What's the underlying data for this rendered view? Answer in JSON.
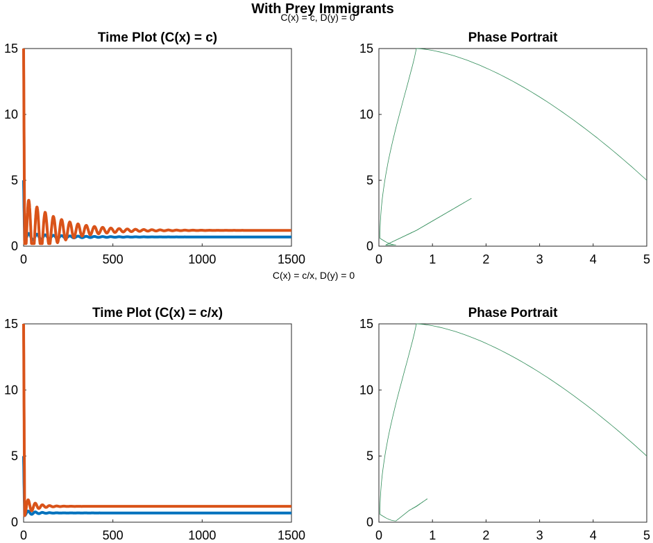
{
  "figure": {
    "suptitle": "With Prey Immigrants",
    "row_labels": [
      "C(x) = c, D(y) = 0",
      "C(x) = c/x, D(y) = 0"
    ]
  },
  "colors": {
    "prey": "#0072BD",
    "predator": "#D95319",
    "phase": "#2E8B57",
    "axes": "#262626"
  },
  "chart_data": [
    {
      "type": "line",
      "title": "Time Plot (C(x) = c)",
      "xlim": [
        0,
        1500
      ],
      "ylim": [
        0,
        15
      ],
      "xticks": [
        0,
        500,
        1000,
        1500
      ],
      "yticks": [
        0,
        5,
        10,
        15
      ],
      "series": [
        {
          "x0": 5.0,
          "eq": 0.7,
          "amp": 0.3,
          "period": 46,
          "decay": 190,
          "trough": 0.05
        },
        {
          "x0": 15.0,
          "eq": 1.2,
          "amp": 2.6,
          "period": 46,
          "decay": 180,
          "trough": 0.2
        }
      ]
    },
    {
      "type": "line",
      "title": "Phase Portrait",
      "xlim": [
        0,
        5
      ],
      "ylim": [
        0,
        15
      ],
      "xticks": [
        0,
        1,
        2,
        3,
        4,
        5
      ],
      "yticks": [
        0,
        5,
        10,
        15
      ],
      "trajectory": {
        "start": [
          5,
          5
        ],
        "peak": [
          0.7,
          15
        ],
        "equilibrium": [
          0.7,
          1.2
        ],
        "first_loop_max_x": 1.8,
        "first_loop_max_y": 3.8,
        "decay": 0.86
      }
    },
    {
      "type": "line",
      "title": "Time Plot (C(x) = c/x)",
      "xlim": [
        0,
        1500
      ],
      "ylim": [
        0,
        15
      ],
      "xticks": [
        0,
        500,
        1000,
        1500
      ],
      "yticks": [
        0,
        5,
        10,
        15
      ],
      "series": [
        {
          "x0": 5.0,
          "eq": 0.7,
          "amp": 0.2,
          "period": 40,
          "decay": 60,
          "trough": 0.1
        },
        {
          "x0": 15.0,
          "eq": 1.2,
          "amp": 0.7,
          "period": 40,
          "decay": 55,
          "trough": 0.3
        }
      ]
    },
    {
      "type": "line",
      "title": "Phase Portrait",
      "xlim": [
        0,
        5
      ],
      "ylim": [
        0,
        15
      ],
      "xticks": [
        0,
        1,
        2,
        3,
        4,
        5
      ],
      "yticks": [
        0,
        5,
        10,
        15
      ],
      "trajectory": {
        "start": [
          5,
          5
        ],
        "peak": [
          0.7,
          15
        ],
        "equilibrium": [
          0.7,
          1.2
        ],
        "first_loop_max_x": 0.95,
        "first_loop_max_y": 1.9,
        "decay": 0.6
      }
    }
  ]
}
